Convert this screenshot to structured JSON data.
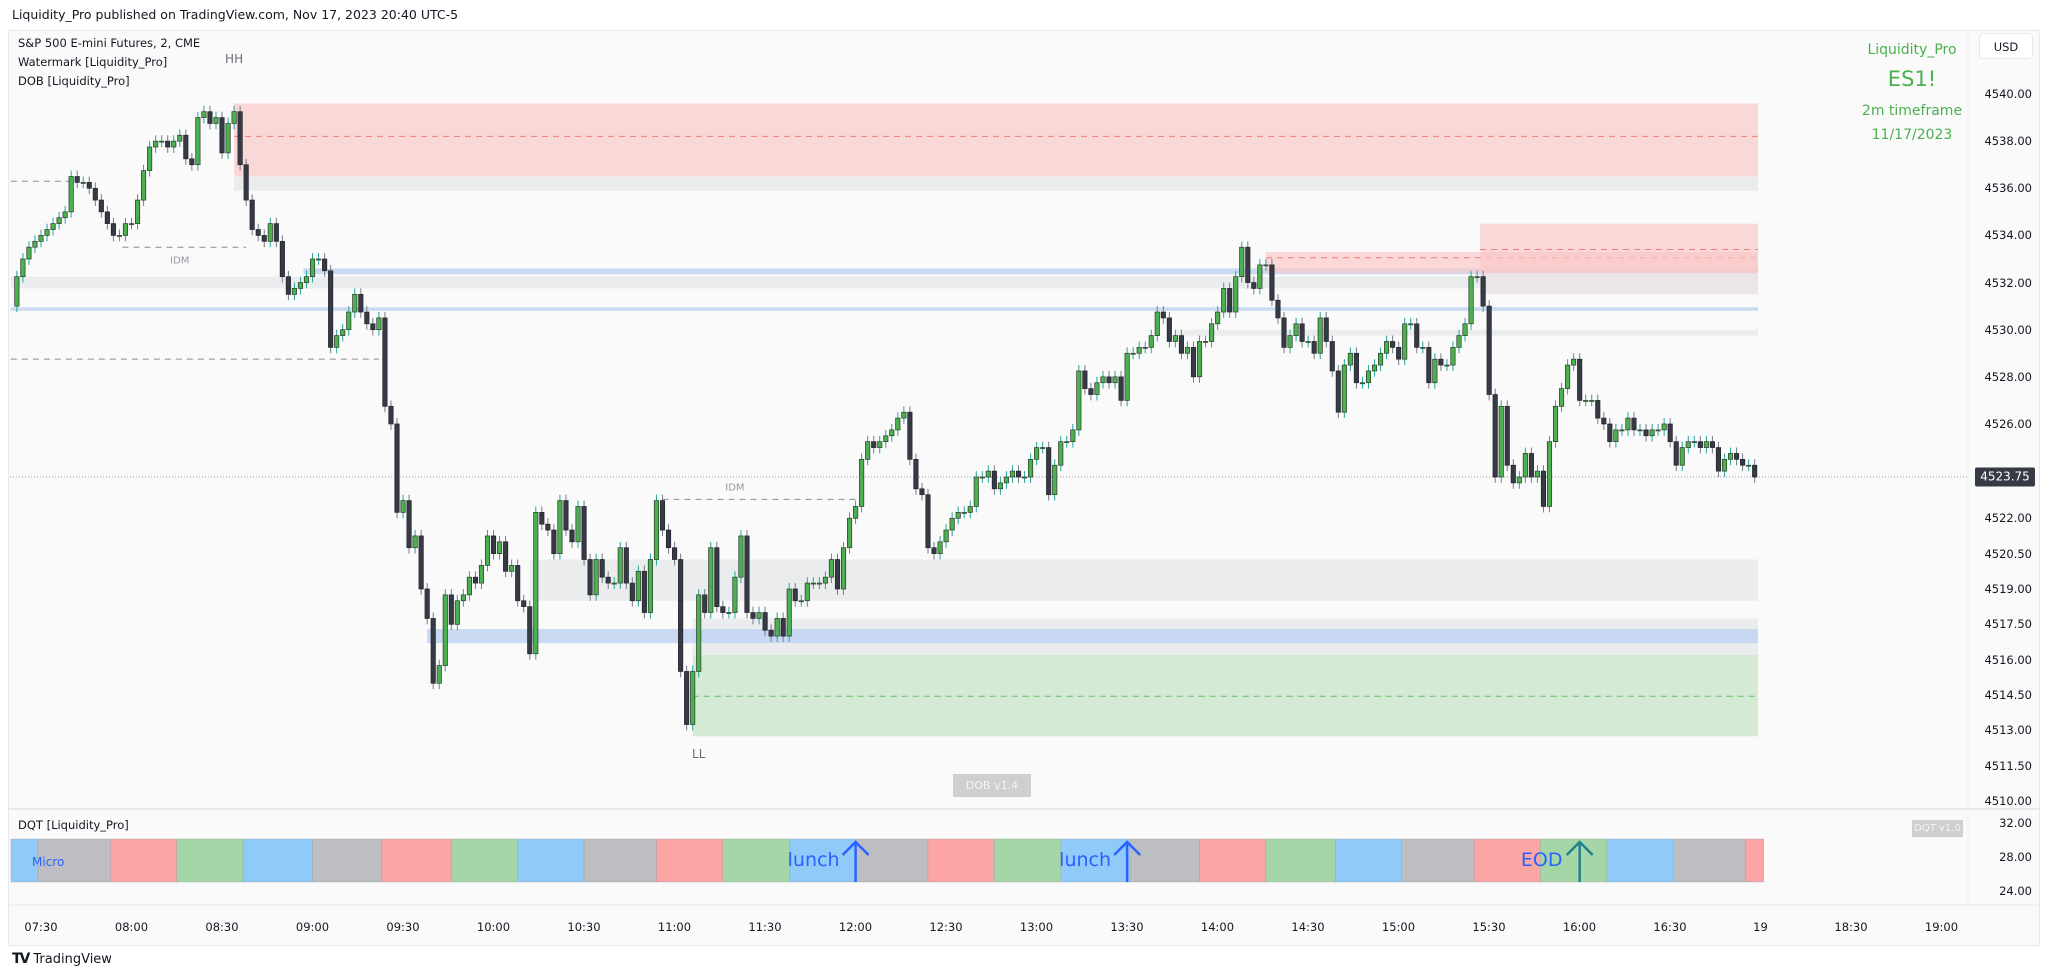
{
  "header": {
    "publish_line": "Liquidity_Pro published on TradingView.com, Nov 17, 2023 20:40 UTC-5"
  },
  "legend": {
    "symbol": "S&P 500 E-mini Futures, 2, CME",
    "indicator_1": "Watermark [Liquidity_Pro]",
    "indicator_2": "DOB [Liquidity_Pro]"
  },
  "watermark": {
    "author": "Liquidity_Pro",
    "ticker": "ES1!",
    "timeframe": "2m timeframe",
    "date": "11/17/2023",
    "color": "#4caf50"
  },
  "price_axis": {
    "currency_button": "USD",
    "labels": [
      "4540.00",
      "4538.00",
      "4536.00",
      "4534.00",
      "4532.00",
      "4530.00",
      "4528.00",
      "4526.00",
      "4522.00",
      "4520.50",
      "4519.00",
      "4517.50",
      "4516.00",
      "4514.50",
      "4513.00",
      "4511.50",
      "4510.00"
    ],
    "last_price": "4523.75"
  },
  "time_axis": {
    "labels": [
      "07:30",
      "08:00",
      "08:30",
      "09:00",
      "09:30",
      "10:00",
      "10:30",
      "11:00",
      "11:30",
      "12:00",
      "12:30",
      "13:00",
      "13:30",
      "14:00",
      "14:30",
      "15:00",
      "15:30",
      "16:00",
      "16:30",
      "19",
      "18:30",
      "19:00"
    ]
  },
  "dob": {
    "badge": "DOB v1.4",
    "structure_labels": [
      {
        "text": "HH",
        "time": "08:34",
        "price": 4541.5
      },
      {
        "text": "IDM",
        "time": "08:16",
        "price": 4532.9
      },
      {
        "text": "IDM",
        "time": "11:20",
        "price": 4523.3
      },
      {
        "text": "LL",
        "time": "11:08",
        "price": 4512.0
      }
    ],
    "zones": [
      {
        "kind": "supply",
        "from": "08:34",
        "top": 4539.6,
        "bottom": 4536.5,
        "mid": 4538.2
      },
      {
        "kind": "neutral",
        "from": "08:34",
        "top": 4536.5,
        "bottom": 4535.9
      },
      {
        "kind": "neutral",
        "from": "07:20",
        "top": 4532.25,
        "bottom": 4531.75
      },
      {
        "kind": "liquidity",
        "from": "08:57",
        "top": 4532.6,
        "bottom": 4532.35
      },
      {
        "kind": "liquidity",
        "from": "07:20",
        "top": 4530.95,
        "bottom": 4530.8
      },
      {
        "kind": "neutral",
        "from": "13:46",
        "top": 4530.0,
        "bottom": 4529.75
      },
      {
        "kind": "supply",
        "from": "14:16",
        "top": 4533.3,
        "bottom": 4532.4,
        "mid": 4533.05
      },
      {
        "kind": "supply",
        "from": "15:27",
        "top": 4534.5,
        "bottom": 4531.5,
        "mid": 4533.4
      },
      {
        "kind": "neutral",
        "from": "15:27",
        "top": 4532.4,
        "bottom": 4531.5
      },
      {
        "kind": "neutral",
        "from": "10:12",
        "top": 4520.25,
        "bottom": 4518.5
      },
      {
        "kind": "neutral",
        "from": "11:06",
        "top": 4517.75,
        "bottom": 4516.2
      },
      {
        "kind": "liquidity",
        "from": "09:38",
        "top": 4517.3,
        "bottom": 4516.7
      },
      {
        "kind": "demand",
        "from": "11:06",
        "top": 4516.2,
        "bottom": 4512.75,
        "mid": 4514.45
      }
    ],
    "dashed_levels": [
      {
        "price": 4536.3,
        "from": "07:20",
        "to": "07:40"
      },
      {
        "price": 4533.5,
        "from": "07:57",
        "to": "08:38"
      },
      {
        "price": 4528.75,
        "from": "07:20",
        "to": "09:22"
      },
      {
        "price": 4522.8,
        "from": "10:56",
        "to": "12:00"
      }
    ],
    "zone_colors": {
      "supply": "#f9c9c9",
      "demand": "#cfe8d0",
      "neutral": "#e8e9eb",
      "liquidity": "#c5d6f2"
    }
  },
  "dqt": {
    "title": "DQT [Liquidity_Pro]",
    "badge": "DQT v1.0",
    "axis_labels": [
      "32.00",
      "28.00",
      "24.00"
    ],
    "micro_label": "Micro",
    "colors": {
      "blue": "#90caf9",
      "gray": "#bdbec2",
      "red": "#fca5a5",
      "green": "#a5d6a7"
    },
    "segments": [
      [
        "07:20",
        "07:29",
        "blue"
      ],
      [
        "07:29",
        "07:53",
        "gray"
      ],
      [
        "07:53",
        "08:15",
        "red"
      ],
      [
        "08:15",
        "08:37",
        "green"
      ],
      [
        "08:37",
        "09:00",
        "blue"
      ],
      [
        "09:00",
        "09:23",
        "gray"
      ],
      [
        "09:23",
        "09:46",
        "red"
      ],
      [
        "09:46",
        "10:08",
        "green"
      ],
      [
        "10:08",
        "10:30",
        "blue"
      ],
      [
        "10:30",
        "10:54",
        "gray"
      ],
      [
        "10:54",
        "11:16",
        "red"
      ],
      [
        "11:16",
        "11:38",
        "green"
      ],
      [
        "11:38",
        "12:00",
        "blue"
      ],
      [
        "12:00",
        "12:24",
        "gray"
      ],
      [
        "12:24",
        "12:46",
        "red"
      ],
      [
        "12:46",
        "13:08",
        "green"
      ],
      [
        "13:08",
        "13:31",
        "blue"
      ],
      [
        "13:31",
        "13:54",
        "gray"
      ],
      [
        "13:54",
        "14:16",
        "red"
      ],
      [
        "14:16",
        "14:39",
        "green"
      ],
      [
        "14:39",
        "15:01",
        "blue"
      ],
      [
        "15:01",
        "15:25",
        "gray"
      ],
      [
        "15:25",
        "15:47",
        "red"
      ],
      [
        "15:47",
        "16:09",
        "green"
      ],
      [
        "16:09",
        "16:31",
        "blue"
      ],
      [
        "16:31",
        "16:55",
        "gray"
      ],
      [
        "16:55",
        "17:01",
        "red"
      ]
    ],
    "markers": [
      {
        "text": "lunch",
        "time": "12:00",
        "color": "#2962ff"
      },
      {
        "text": "lunch",
        "time": "13:30",
        "color": "#2962ff"
      },
      {
        "text": "EOD",
        "time": "16:00",
        "color": "#26808a"
      }
    ]
  },
  "footer": {
    "brand": "TradingView"
  },
  "chart_data": {
    "type": "candlestick",
    "title": "S&P 500 E-mini Futures, 2, CME",
    "first_bar": "07:22",
    "interval_minutes": 2,
    "first_open": 4531.0,
    "last_price": 4523.75,
    "ylim": [
      4510,
      4540
    ],
    "colors": {
      "up": "#4caf50",
      "down": "#363a45",
      "wick": "#26a69a"
    },
    "closes": [
      4532.25,
      4533.0,
      4533.5,
      4533.75,
      4534.0,
      4534.25,
      4534.5,
      4534.75,
      4535.0,
      4536.5,
      4536.25,
      4536.25,
      4536.0,
      4535.5,
      4535.0,
      4534.5,
      4534.0,
      4534.0,
      4534.5,
      4534.5,
      4535.5,
      4536.75,
      4537.75,
      4538.0,
      4538.0,
      4537.75,
      4538.0,
      4538.25,
      4537.25,
      4537.0,
      4539.0,
      4539.25,
      4538.75,
      4539.0,
      4537.5,
      4538.75,
      4539.25,
      4537.0,
      4535.5,
      4534.25,
      4534.0,
      4533.75,
      4534.5,
      4533.75,
      4532.25,
      4531.5,
      4531.75,
      4532.0,
      4532.25,
      4533.0,
      4533.0,
      4532.5,
      4529.25,
      4529.75,
      4530.0,
      4530.75,
      4531.5,
      4530.75,
      4530.25,
      4530.0,
      4530.5,
      4526.75,
      4526.0,
      4522.25,
      4522.75,
      4520.75,
      4521.25,
      4519.0,
      4517.75,
      4515.0,
      4515.75,
      4518.75,
      4517.5,
      4518.5,
      4518.75,
      4519.5,
      4519.25,
      4520.0,
      4521.25,
      4520.5,
      4521.0,
      4519.75,
      4520.0,
      4518.5,
      4518.25,
      4516.25,
      4522.25,
      4521.75,
      4521.5,
      4520.5,
      4522.75,
      4521.5,
      4521.0,
      4522.5,
      4520.25,
      4518.75,
      4520.25,
      4519.5,
      4519.25,
      4519.25,
      4520.75,
      4519.25,
      4518.5,
      4519.75,
      4518.0,
      4520.25,
      4522.75,
      4521.5,
      4520.75,
      4520.25,
      4515.5,
      4513.25,
      4515.5,
      4518.75,
      4518.0,
      4520.75,
      4518.25,
      4518.0,
      4518.0,
      4519.5,
      4521.25,
      4518.0,
      4517.75,
      4518.0,
      4517.25,
      4517.0,
      4517.75,
      4517.0,
      4519.0,
      4518.5,
      4518.5,
      4519.25,
      4519.25,
      4519.25,
      4519.5,
      4520.25,
      4519.0,
      4520.75,
      4522.0,
      4522.5,
      4524.5,
      4525.25,
      4525.0,
      4525.25,
      4525.5,
      4525.75,
      4526.25,
      4526.5,
      4524.5,
      4523.25,
      4523.0,
      4520.75,
      4520.5,
      4521.0,
      4521.5,
      4522.0,
      4522.25,
      4522.25,
      4522.5,
      4523.75,
      4523.75,
      4524.0,
      4523.25,
      4523.5,
      4523.75,
      4524.0,
      4523.75,
      4523.75,
      4524.5,
      4525.0,
      4525.0,
      4523.0,
      4524.25,
      4525.25,
      4525.25,
      4525.75,
      4528.25,
      4527.5,
      4527.25,
      4527.75,
      4528.0,
      4527.75,
      4528.0,
      4527.0,
      4529.0,
      4529.0,
      4529.25,
      4529.25,
      4529.75,
      4530.75,
      4530.5,
      4529.5,
      4529.75,
      4529.0,
      4529.25,
      4528.0,
      4529.5,
      4529.5,
      4530.25,
      4530.75,
      4531.75,
      4530.75,
      4532.25,
      4533.5,
      4532.0,
      4531.75,
      4532.75,
      4532.75,
      4531.25,
      4530.5,
      4529.25,
      4529.75,
      4530.25,
      4529.5,
      4529.5,
      4529.0,
      4530.5,
      4529.5,
      4528.25,
      4526.5,
      4528.5,
      4529.0,
      4527.75,
      4527.75,
      4528.25,
      4528.5,
      4529.0,
      4529.5,
      4529.25,
      4528.75,
      4530.25,
      4530.25,
      4529.25,
      4529.25,
      4527.75,
      4528.75,
      4528.5,
      4528.5,
      4529.25,
      4529.75,
      4530.25,
      4532.25,
      4532.25,
      4531.0,
      4527.25,
      4523.75,
      4526.75,
      4524.25,
      4523.5,
      4523.75,
      4524.75,
      4523.75,
      4524.0,
      4522.5,
      4525.25,
      4526.75,
      4527.5,
      4528.5,
      4528.75,
      4527.0,
      4527.0,
      4527.0,
      4526.25,
      4526.0,
      4525.25,
      4525.75,
      4525.75,
      4526.25,
      4525.75,
      4525.75,
      4525.5,
      4525.75,
      4525.75,
      4526.0,
      4525.25,
      4524.25,
      4525.0,
      4525.25,
      4525.25,
      4525.0,
      4525.25,
      4525.0,
      4524.0,
      4524.5,
      4524.75,
      4524.5,
      4524.25,
      4524.25,
      4523.75
    ]
  }
}
